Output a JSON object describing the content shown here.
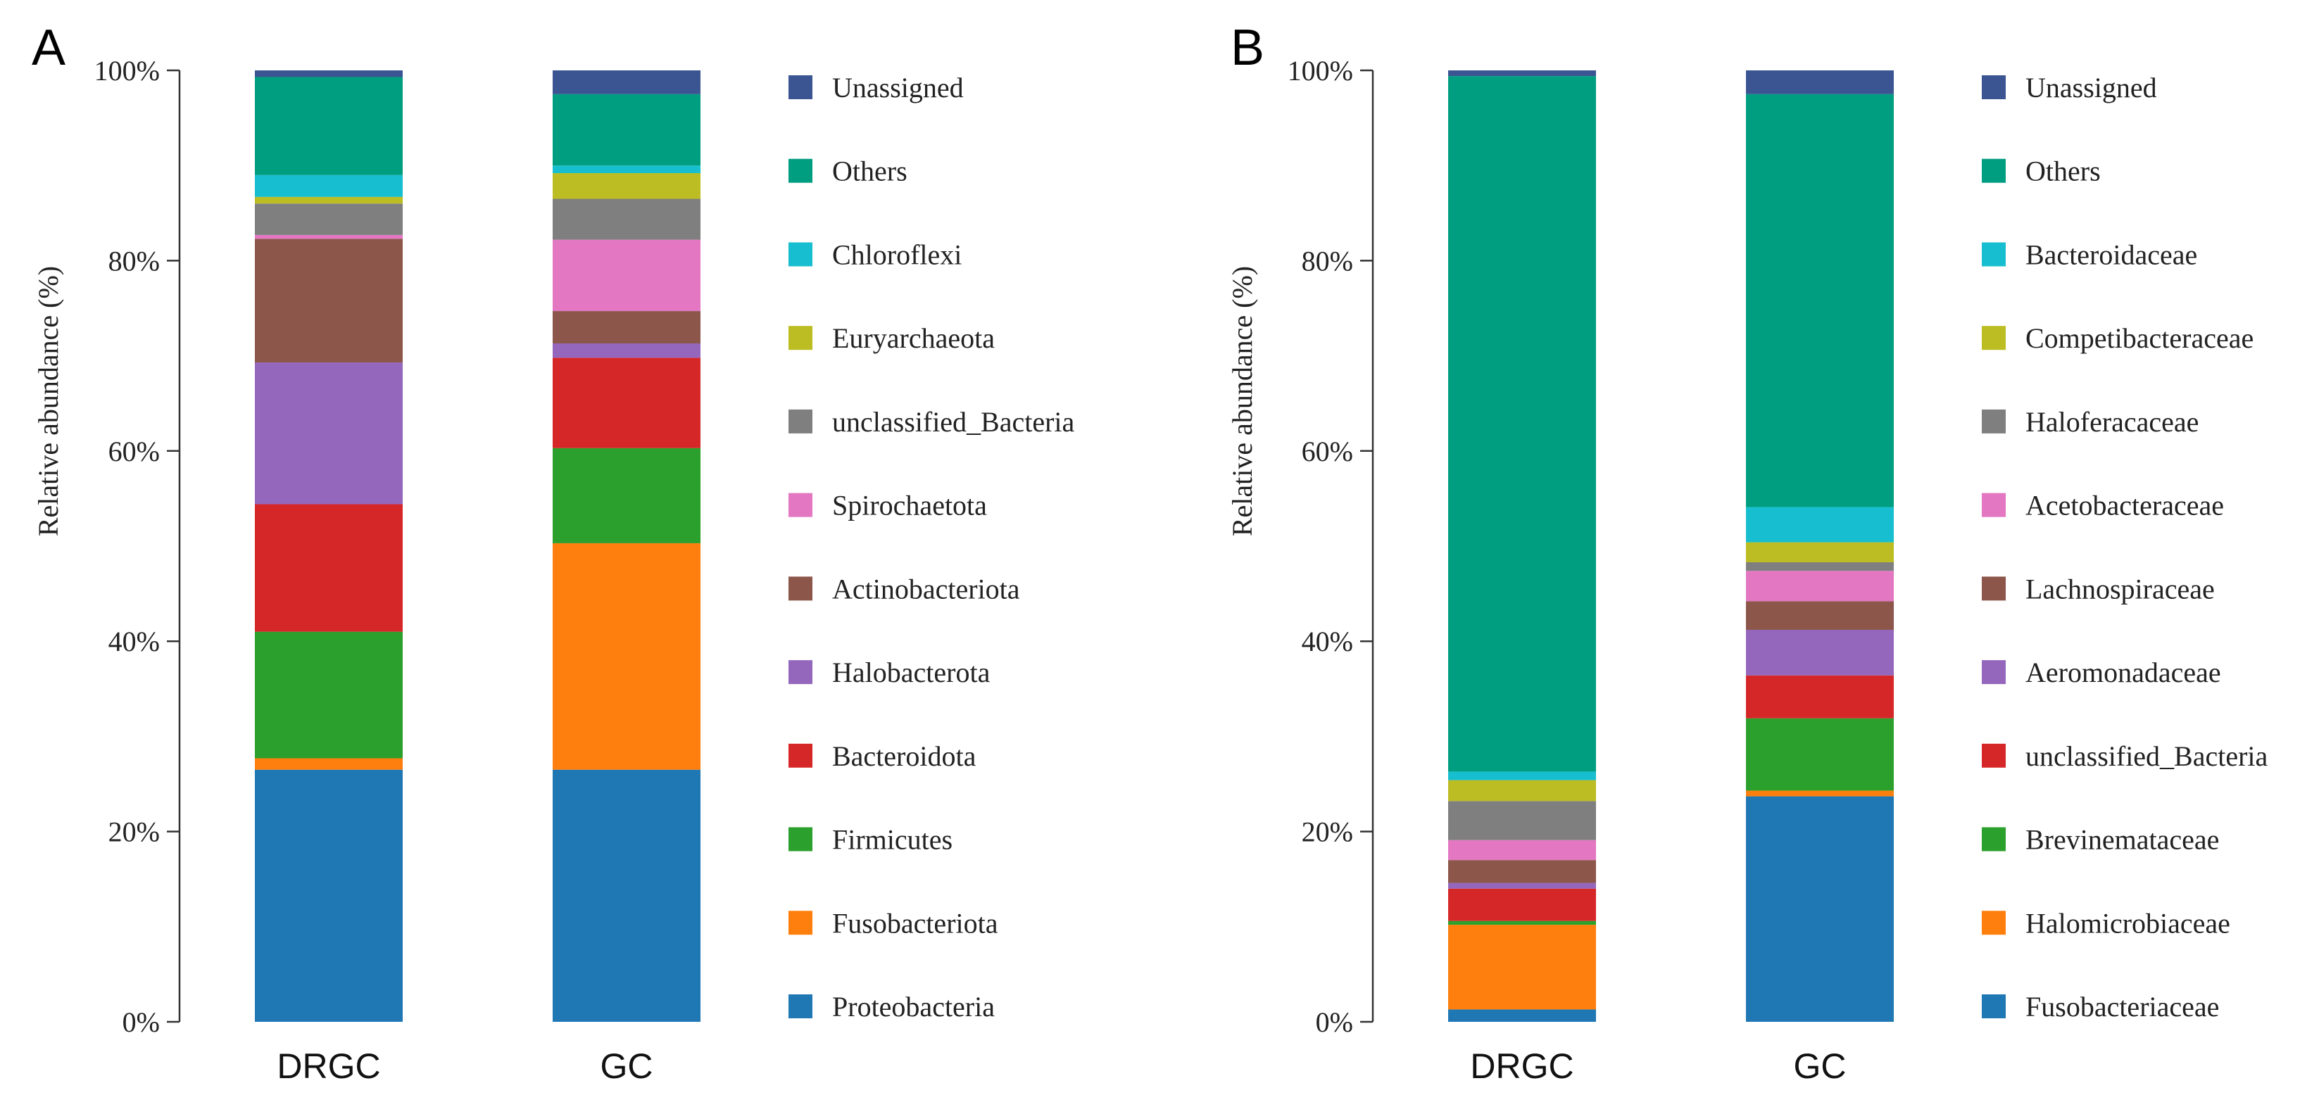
{
  "chart_data": [
    {
      "type": "bar",
      "stacked": true,
      "panel_label": "A",
      "ylabel": "Relative abundance (%)",
      "ylim": [
        0,
        100
      ],
      "yticks": [
        "0%",
        "20%",
        "40%",
        "60%",
        "80%",
        "100%"
      ],
      "categories": [
        "DRGC",
        "GC"
      ],
      "series": [
        {
          "name": "Proteobacteria",
          "color": "#1f77b4",
          "values": [
            26.5,
            26.5
          ]
        },
        {
          "name": "Fusobacteriota",
          "color": "#ff7f0e",
          "values": [
            1.2,
            23.8
          ]
        },
        {
          "name": "Firmicutes",
          "color": "#2ca02c",
          "values": [
            13.3,
            10.0
          ]
        },
        {
          "name": "Bacteroidota",
          "color": "#d62728",
          "values": [
            13.4,
            9.5
          ]
        },
        {
          "name": "Halobacterota",
          "color": "#9467bd",
          "values": [
            14.9,
            1.5
          ]
        },
        {
          "name": "Actinobacteriota",
          "color": "#8c564b",
          "values": [
            13.0,
            3.4
          ]
        },
        {
          "name": "Spirochaetota",
          "color": "#e377c2",
          "values": [
            0.4,
            7.5
          ]
        },
        {
          "name": "unclassified_Bacteria",
          "color": "#7f7f7f",
          "values": [
            3.3,
            4.3
          ]
        },
        {
          "name": "Euryarchaeota",
          "color": "#bcbd22",
          "values": [
            0.7,
            2.7
          ]
        },
        {
          "name": "Chloroflexi",
          "color": "#17becf",
          "values": [
            2.3,
            0.8
          ]
        },
        {
          "name": "Others",
          "color": "#009e80",
          "values": [
            10.3,
            7.5
          ]
        },
        {
          "name": "Unassigned",
          "color": "#3a5592",
          "values": [
            0.7,
            2.5
          ]
        }
      ]
    },
    {
      "type": "bar",
      "stacked": true,
      "panel_label": "B",
      "ylabel": "Relative abundance (%)",
      "ylim": [
        0,
        100
      ],
      "yticks": [
        "0%",
        "20%",
        "40%",
        "60%",
        "80%",
        "100%"
      ],
      "categories": [
        "DRGC",
        "GC"
      ],
      "series": [
        {
          "name": "Fusobacteriaceae",
          "color": "#1f77b4",
          "values": [
            1.3,
            23.7
          ]
        },
        {
          "name": "Halomicrobiaceae",
          "color": "#ff7f0e",
          "values": [
            8.9,
            0.6
          ]
        },
        {
          "name": "Brevinemataceae",
          "color": "#2ca02c",
          "values": [
            0.4,
            7.6
          ]
        },
        {
          "name": "unclassified_Bacteria",
          "color": "#d62728",
          "values": [
            3.4,
            4.5
          ]
        },
        {
          "name": "Aeromonadaceae",
          "color": "#9467bd",
          "values": [
            0.6,
            4.8
          ]
        },
        {
          "name": "Lachnospiraceae",
          "color": "#8c564b",
          "values": [
            2.4,
            3.0
          ]
        },
        {
          "name": "Acetobacteraceae",
          "color": "#e377c2",
          "values": [
            2.1,
            3.2
          ]
        },
        {
          "name": "Haloferacaceae",
          "color": "#7f7f7f",
          "values": [
            4.1,
            0.9
          ]
        },
        {
          "name": "Competibacteraceae",
          "color": "#bcbd22",
          "values": [
            2.2,
            2.1
          ]
        },
        {
          "name": "Bacteroidaceae",
          "color": "#17becf",
          "values": [
            0.9,
            3.7
          ]
        },
        {
          "name": "Others",
          "color": "#009e80",
          "values": [
            73.1,
            43.4
          ]
        },
        {
          "name": "Unassigned",
          "color": "#3a5592",
          "values": [
            0.6,
            2.5
          ]
        }
      ]
    }
  ]
}
